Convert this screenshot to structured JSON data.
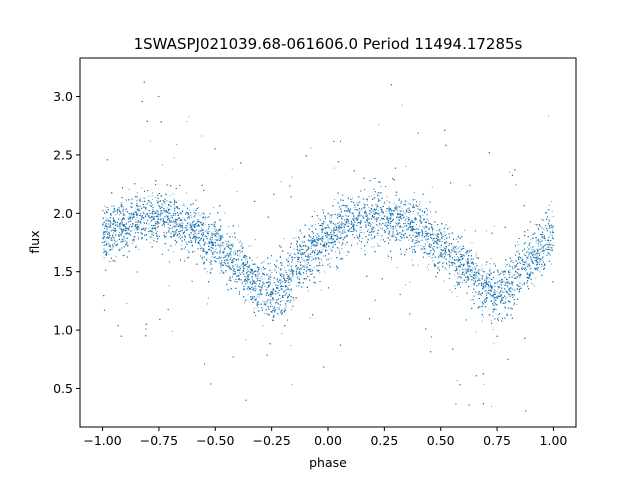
{
  "chart_data": {
    "type": "scatter",
    "title": "1SWASPJ021039.68-061606.0 Period 11494.17285s",
    "xlabel": "phase",
    "ylabel": "flux",
    "xlim": [
      -1.1,
      1.1
    ],
    "ylim": [
      0.17,
      3.33
    ],
    "xticks": [
      -1.0,
      -0.75,
      -0.5,
      -0.25,
      0.0,
      0.25,
      0.5,
      0.75,
      1.0
    ],
    "xtick_labels": [
      "−1.00",
      "−0.75",
      "−0.50",
      "−0.25",
      "0.00",
      "0.25",
      "0.50",
      "0.75",
      "1.00"
    ],
    "yticks": [
      0.5,
      1.0,
      1.5,
      2.0,
      2.5,
      3.0
    ],
    "ytick_labels": [
      "0.5",
      "1.0",
      "1.5",
      "2.0",
      "2.5",
      "3.0"
    ],
    "grid": false,
    "legend": "none",
    "point_color": "#1f77b4",
    "series": [
      {
        "trend_x": [
          -1.0,
          -0.9,
          -0.8,
          -0.75,
          -0.7,
          -0.6,
          -0.5,
          -0.4,
          -0.3,
          -0.25,
          -0.2,
          -0.1,
          0.0,
          0.1,
          0.2,
          0.25,
          0.3,
          0.4,
          0.5,
          0.6,
          0.7,
          0.75,
          0.8,
          0.9,
          1.0
        ],
        "trend_y": [
          1.82,
          1.9,
          1.96,
          1.97,
          1.95,
          1.87,
          1.72,
          1.55,
          1.36,
          1.3,
          1.38,
          1.62,
          1.8,
          1.9,
          1.96,
          1.97,
          1.95,
          1.87,
          1.72,
          1.55,
          1.36,
          1.3,
          1.38,
          1.6,
          1.82
        ],
        "spread": 0.12,
        "n_points": 14000
      }
    ]
  }
}
